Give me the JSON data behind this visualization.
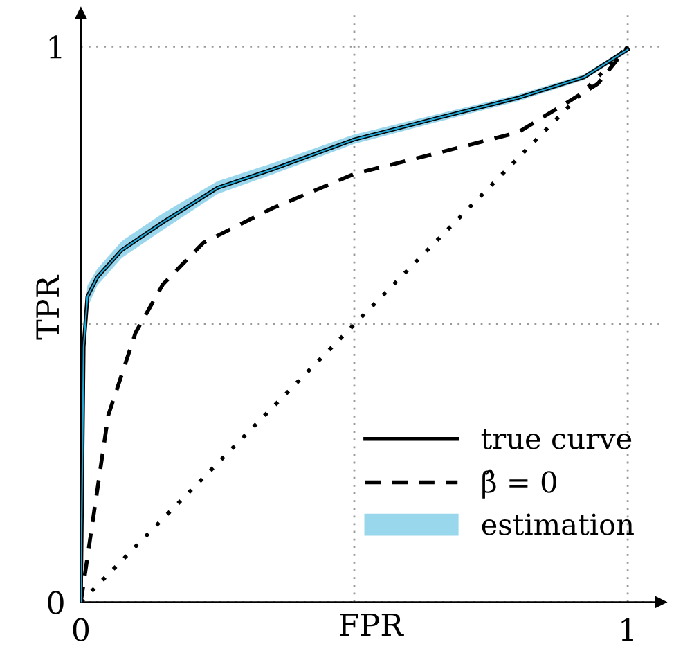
{
  "chart_data": {
    "type": "line",
    "xlabel": "FPR",
    "ylabel": "TPR",
    "xlim": [
      0,
      1.06
    ],
    "ylim": [
      0,
      1.06
    ],
    "xticks": [
      0,
      {
        "value": 0.5,
        "label": null
      },
      1
    ],
    "yticks": [
      0,
      {
        "value": 0.5,
        "label": null
      },
      1
    ],
    "grid": true,
    "legend": "bottom right",
    "series": [
      {
        "name": "true curve",
        "color": "#000000",
        "line_style": "solid",
        "x": [
          0,
          0.005,
          0.012,
          0.03,
          0.075,
          0.15,
          0.25,
          0.35,
          0.5,
          0.65,
          0.8,
          0.92,
          1
        ],
        "values": [
          0,
          0.46,
          0.55,
          0.585,
          0.634,
          0.684,
          0.746,
          0.779,
          0.833,
          0.871,
          0.908,
          0.945,
          0.995
        ]
      },
      {
        "name": "β̂ = 0",
        "color": "#000000",
        "line_style": "dashed",
        "x": [
          0,
          0.05,
          0.1,
          0.15,
          0.224,
          0.35,
          0.5,
          0.65,
          0.8,
          0.945,
          1
        ],
        "values": [
          0,
          0.336,
          0.485,
          0.572,
          0.647,
          0.709,
          0.771,
          0.808,
          0.846,
          0.933,
          1
        ]
      },
      {
        "name": "estimation",
        "color": "#1fa7d6",
        "line_style": "solid",
        "x": [
          0,
          0.005,
          0.012,
          0.03,
          0.075,
          0.15,
          0.25,
          0.35,
          0.5,
          0.65,
          0.8,
          0.92,
          1
        ],
        "values": [
          0,
          0.46,
          0.55,
          0.585,
          0.634,
          0.684,
          0.746,
          0.779,
          0.833,
          0.871,
          0.908,
          0.945,
          0.995
        ],
        "lower": [
          0,
          0.43,
          0.53,
          0.57,
          0.62,
          0.67,
          0.735,
          0.77,
          0.825,
          0.864,
          0.902,
          0.94,
          0.99
        ],
        "upper": [
          0,
          0.49,
          0.57,
          0.6,
          0.65,
          0.7,
          0.758,
          0.79,
          0.842,
          0.878,
          0.914,
          0.95,
          1.0
        ]
      },
      {
        "color": "#000000",
        "line_style": "dotted",
        "x": [
          0,
          1
        ],
        "values": [
          0,
          1
        ]
      }
    ]
  }
}
